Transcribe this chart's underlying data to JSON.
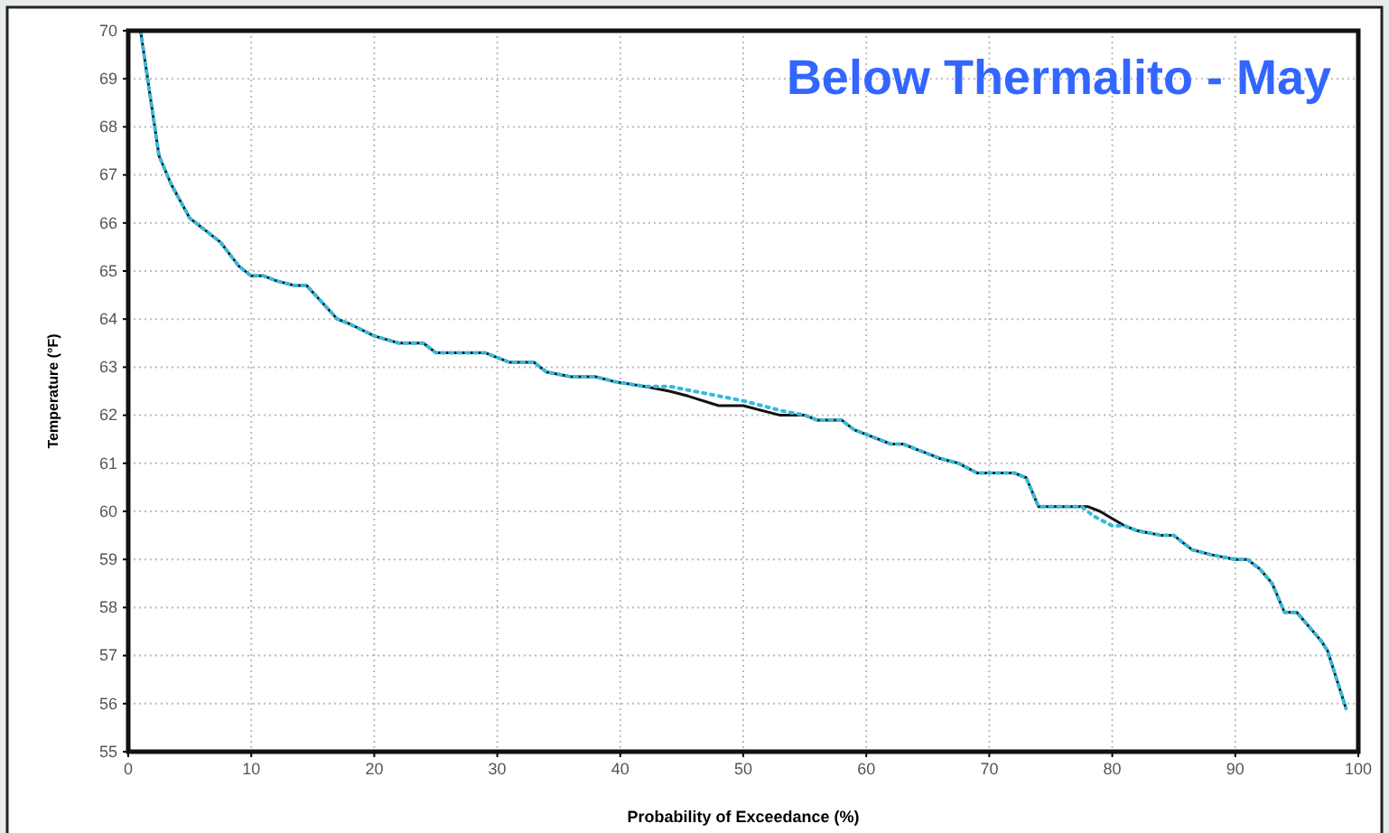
{
  "chart_data": {
    "type": "line",
    "title": "Below Thermalito - May",
    "xlabel": "Probability of Exceedance (%)",
    "ylabel": "Temperature (°F)",
    "xlim": [
      0,
      100
    ],
    "xticks": [
      0,
      10,
      20,
      30,
      40,
      50,
      60,
      70,
      80,
      90,
      100
    ],
    "ylim": [
      55,
      70
    ],
    "yticks": [
      55,
      56,
      57,
      58,
      59,
      60,
      61,
      62,
      63,
      64,
      65,
      66,
      67,
      68,
      69,
      70
    ],
    "grid": true,
    "series": [
      {
        "color": "#111111",
        "line_style": "solid",
        "x": [
          1,
          2.5,
          3.5,
          5,
          6.5,
          7.5,
          9,
          10,
          11,
          12,
          13.5,
          14.5,
          17,
          18,
          20,
          22,
          24,
          25,
          28,
          29,
          31,
          33,
          34,
          36,
          38,
          39.5,
          42,
          44,
          45.5,
          48,
          50,
          53,
          55,
          56,
          58,
          59,
          60,
          62,
          63,
          65,
          66,
          67.5,
          69,
          70,
          72,
          73,
          74,
          76,
          78,
          79,
          81,
          82,
          84,
          85,
          86.5,
          88,
          90,
          91,
          92,
          93,
          94,
          95,
          96,
          97,
          97.5,
          99
        ],
        "values": [
          70,
          67.4,
          66.8,
          66.1,
          65.8,
          65.6,
          65.1,
          64.9,
          64.9,
          64.8,
          64.7,
          64.7,
          64,
          63.9,
          63.65,
          63.5,
          63.5,
          63.3,
          63.3,
          63.3,
          63.1,
          63.1,
          62.9,
          62.8,
          62.8,
          62.7,
          62.6,
          62.5,
          62.4,
          62.2,
          62.2,
          62,
          62,
          61.9,
          61.9,
          61.7,
          61.6,
          61.4,
          61.4,
          61.2,
          61.1,
          61,
          60.8,
          60.8,
          60.8,
          60.7,
          60.1,
          60.1,
          60.1,
          60,
          59.7,
          59.6,
          59.5,
          59.5,
          59.2,
          59.1,
          59,
          59,
          58.8,
          58.5,
          57.9,
          57.9,
          57.6,
          57.3,
          57.1,
          55.9
        ]
      },
      {
        "color": "#33bbdd",
        "line_style": "dotted",
        "x": [
          1,
          2.5,
          3.5,
          5,
          6.5,
          7.5,
          9,
          10,
          11,
          12,
          13.5,
          14.5,
          17,
          18,
          20,
          22,
          24,
          25,
          28,
          29,
          31,
          33,
          34,
          36,
          38,
          39.5,
          42,
          44,
          46,
          50,
          53,
          55,
          56,
          58,
          59,
          60,
          62,
          63,
          65,
          66,
          67.5,
          69,
          70,
          72,
          73,
          74,
          76,
          77.5,
          78.5,
          80,
          81,
          82,
          84,
          85,
          86.5,
          88,
          90,
          91,
          92,
          93,
          94,
          95,
          96,
          97,
          97.5,
          99
        ],
        "values": [
          70,
          67.4,
          66.8,
          66.1,
          65.8,
          65.6,
          65.1,
          64.9,
          64.9,
          64.8,
          64.7,
          64.7,
          64,
          63.9,
          63.65,
          63.5,
          63.5,
          63.3,
          63.3,
          63.3,
          63.1,
          63.1,
          62.9,
          62.8,
          62.8,
          62.7,
          62.6,
          62.6,
          62.5,
          62.3,
          62.1,
          62,
          61.9,
          61.9,
          61.7,
          61.6,
          61.4,
          61.4,
          61.2,
          61.1,
          61,
          60.8,
          60.8,
          60.8,
          60.7,
          60.1,
          60.1,
          60.1,
          59.9,
          59.7,
          59.7,
          59.6,
          59.5,
          59.5,
          59.2,
          59.1,
          59,
          59,
          58.8,
          58.5,
          57.9,
          57.9,
          57.6,
          57.3,
          57.1,
          55.9
        ]
      }
    ]
  }
}
